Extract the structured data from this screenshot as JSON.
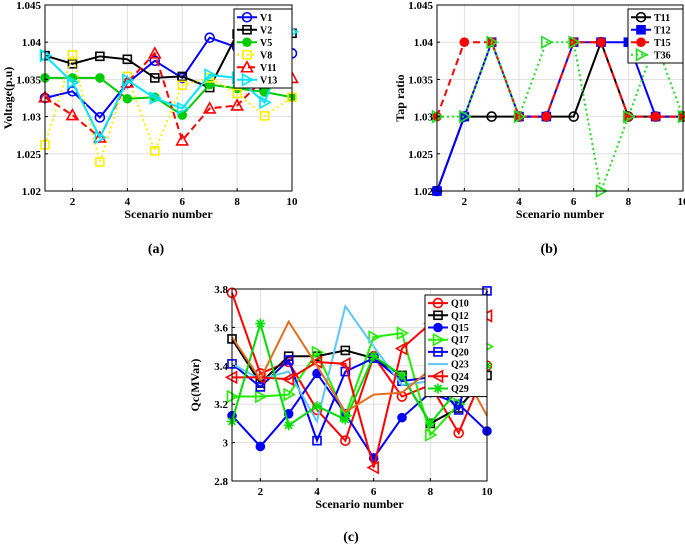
{
  "chart_data": [
    {
      "id": "a",
      "type": "line",
      "caption": "(a)",
      "xlabel": "Scenario number",
      "ylabel": "Voltage(p.u)",
      "xlim": [
        1,
        10
      ],
      "ylim": [
        1.02,
        1.045
      ],
      "xticks": [
        2,
        4,
        6,
        8,
        10
      ],
      "yticks": [
        1.02,
        1.025,
        1.03,
        1.035,
        1.04,
        1.045
      ],
      "ytick_labels": [
        "1.02",
        "1.025",
        "1.03",
        "1.035",
        "1.04",
        "1.045"
      ],
      "legend_position": "top-right",
      "x": [
        1,
        2,
        3,
        4,
        5,
        6,
        7,
        8,
        9,
        10
      ],
      "series": [
        {
          "name": "V1",
          "color": "#0000ff",
          "marker": "circle",
          "dash": "solid",
          "values": [
            1.0325,
            1.0334,
            1.0299,
            1.0345,
            1.0375,
            1.0352,
            1.0406,
            1.0393,
            1.0335,
            1.0385
          ]
        },
        {
          "name": "V2",
          "color": "#000000",
          "marker": "square",
          "dash": "solid",
          "values": [
            1.0382,
            1.0371,
            1.0381,
            1.0377,
            1.0352,
            1.0354,
            1.0339,
            1.0411,
            1.0343,
            1.0412
          ]
        },
        {
          "name": "V5",
          "color": "#00cc00",
          "marker": "circle-filled",
          "dash": "solid",
          "values": [
            1.0352,
            1.0352,
            1.0352,
            1.0324,
            1.0326,
            1.0302,
            1.0343,
            1.0338,
            1.0333,
            1.0326
          ]
        },
        {
          "name": "V8",
          "color": "#ffee00",
          "marker": "square",
          "dash": "dotted",
          "values": [
            1.0262,
            1.0383,
            1.0239,
            1.0354,
            1.0254,
            1.0342,
            1.0352,
            1.0331,
            1.0301,
            1.0326
          ]
        },
        {
          "name": "V11",
          "color": "#ff0000",
          "marker": "triangle",
          "dash": "dashed",
          "values": [
            1.0326,
            1.0302,
            1.0272,
            1.0346,
            1.0385,
            1.0268,
            1.0311,
            1.0315,
            1.0352,
            1.0352
          ]
        },
        {
          "name": "V13",
          "color": "#00e5ff",
          "marker": "triangle-right",
          "dash": "solid",
          "values": [
            1.0382,
            1.0346,
            1.0272,
            1.0349,
            1.0325,
            1.0311,
            1.0356,
            1.0352,
            1.0319,
            1.0414
          ]
        }
      ]
    },
    {
      "id": "b",
      "type": "line",
      "caption": "(b)",
      "xlabel": "Scenario number",
      "ylabel": "Tap ratio",
      "xlim": [
        1,
        10
      ],
      "ylim": [
        1.02,
        1.045
      ],
      "xticks": [
        2,
        4,
        6,
        8,
        10
      ],
      "yticks": [
        1.02,
        1.025,
        1.03,
        1.035,
        1.04,
        1.045
      ],
      "ytick_labels": [
        "1.02",
        "1.025",
        "1.03",
        "1.035",
        "1.04",
        "1.045"
      ],
      "legend_position": "top-right",
      "x": [
        1,
        2,
        3,
        4,
        5,
        6,
        7,
        8,
        9,
        10
      ],
      "series": [
        {
          "name": "T11",
          "color": "#000000",
          "marker": "circle",
          "dash": "solid",
          "values": [
            1.02,
            1.03,
            1.03,
            1.03,
            1.03,
            1.03,
            1.04,
            1.03,
            1.03,
            1.03
          ]
        },
        {
          "name": "T12",
          "color": "#0000ff",
          "marker": "square-filled",
          "dash": "solid",
          "values": [
            1.02,
            1.03,
            1.04,
            1.03,
            1.03,
            1.04,
            1.04,
            1.04,
            1.03,
            1.03
          ]
        },
        {
          "name": "T15",
          "color": "#ff0000",
          "marker": "circle-filled",
          "dash": "dashed",
          "values": [
            1.03,
            1.04,
            1.04,
            1.03,
            1.03,
            1.04,
            1.04,
            1.03,
            1.03,
            1.03
          ]
        },
        {
          "name": "T36",
          "color": "#22dd22",
          "marker": "triangle-right",
          "dash": "dotted",
          "values": [
            1.03,
            1.03,
            1.04,
            1.03,
            1.04,
            1.04,
            1.02,
            1.03,
            1.04,
            1.03
          ]
        }
      ]
    },
    {
      "id": "c",
      "type": "line",
      "caption": "(c)",
      "xlabel": "Scenario number",
      "ylabel": "Qc(MVar)",
      "xlim": [
        1,
        10
      ],
      "ylim": [
        2.8,
        3.8
      ],
      "xticks": [
        2,
        4,
        6,
        8,
        10
      ],
      "yticks": [
        2.8,
        3,
        3.2,
        3.4,
        3.6,
        3.8
      ],
      "ytick_labels": [
        "2.8",
        "3",
        "3.2",
        "3.4",
        "3.6",
        "3.8"
      ],
      "legend_position": "top-right",
      "x": [
        1,
        2,
        3,
        4,
        5,
        6,
        7,
        8,
        9,
        10
      ],
      "series": [
        {
          "name": "Q10",
          "color": "#ff0000",
          "marker": "circle",
          "dash": "solid",
          "values": [
            3.78,
            3.36,
            3.42,
            3.17,
            3.01,
            3.45,
            3.24,
            3.3,
            3.05,
            3.4
          ]
        },
        {
          "name": "Q12",
          "color": "#000000",
          "marker": "square",
          "dash": "solid",
          "values": [
            3.54,
            3.31,
            3.45,
            3.45,
            3.48,
            3.44,
            3.35,
            3.1,
            3.18,
            3.35
          ]
        },
        {
          "name": "Q15",
          "color": "#0000ff",
          "marker": "circle-filled",
          "dash": "solid",
          "values": [
            3.14,
            2.98,
            3.15,
            3.36,
            3.15,
            2.92,
            3.13,
            3.26,
            3.2,
            3.06
          ]
        },
        {
          "name": "Q17",
          "color": "#22ee00",
          "marker": "triangle-right",
          "dash": "solid",
          "values": [
            3.24,
            3.24,
            3.25,
            3.47,
            3.14,
            3.55,
            3.57,
            3.04,
            3.2,
            3.5
          ]
        },
        {
          "name": "Q20",
          "color": "#0000ff",
          "marker": "square",
          "dash": "solid",
          "values": [
            3.41,
            3.29,
            3.43,
            3.01,
            3.37,
            3.44,
            3.32,
            3.34,
            3.17,
            3.79
          ]
        },
        {
          "name": "Q23",
          "color": "#5bc8f5",
          "marker": "none",
          "dash": "solid",
          "values": [
            3.41,
            3.33,
            3.37,
            3.11,
            3.71,
            3.5,
            3.3,
            3.32,
            3.28,
            3.4
          ]
        },
        {
          "name": "Q24",
          "color": "#ff0000",
          "marker": "triangle-left",
          "dash": "solid",
          "values": [
            3.34,
            3.34,
            3.33,
            3.42,
            3.41,
            2.87,
            3.49,
            3.62,
            3.3,
            3.66
          ]
        },
        {
          "name": "Q29",
          "color": "#00dd00",
          "marker": "asterisk",
          "dash": "solid",
          "values": [
            3.11,
            3.62,
            3.09,
            3.19,
            3.12,
            3.45,
            3.35,
            3.1,
            3.28,
            3.4
          ]
        },
        {
          "name": "",
          "color": "#e07020",
          "marker": "none",
          "dash": "solid",
          "values": [
            3.55,
            3.33,
            3.63,
            3.4,
            3.16,
            3.25,
            3.26,
            3.38,
            3.41,
            3.14
          ]
        }
      ]
    }
  ]
}
